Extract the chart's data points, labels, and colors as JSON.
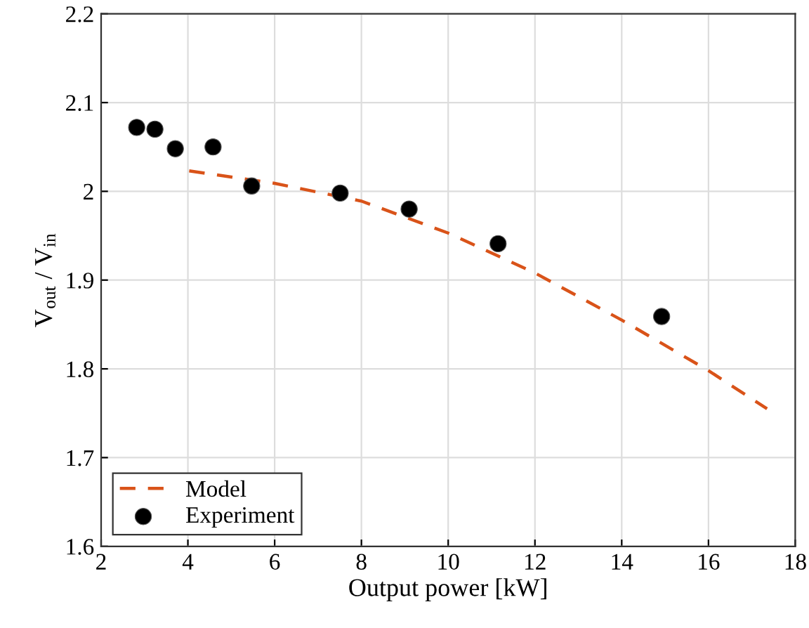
{
  "chart_data": {
    "type": "line",
    "xlabel": "Output power [kW]",
    "ylabel": "V$_{out}$ / V$_{in}$",
    "xlim": [
      2,
      18
    ],
    "ylim": [
      1.6,
      2.2
    ],
    "xticks": [
      2,
      4,
      6,
      8,
      10,
      12,
      14,
      16,
      18
    ],
    "yticks": [
      1.6,
      1.7,
      1.8,
      1.9,
      {
        "value": 2.0,
        "label": "2"
      },
      2.1,
      2.2
    ],
    "grid": true,
    "legend": "bottom left",
    "series": [
      {
        "name": "Model",
        "line_style": "dashed",
        "marker": "none",
        "color": "#d95319",
        "x": [
          4.03,
          6,
          8,
          10,
          12,
          14,
          16,
          17.35
        ],
        "values": [
          2.023,
          2.009,
          1.989,
          1.953,
          1.908,
          1.855,
          1.798,
          1.755
        ]
      },
      {
        "name": "Experiment",
        "type": "scatter",
        "marker": "circle",
        "color": "#000000",
        "x": [
          2.82,
          3.24,
          3.71,
          4.58,
          5.47,
          7.51,
          9.1,
          11.15,
          14.92
        ],
        "values": [
          2.072,
          2.07,
          2.048,
          2.05,
          2.006,
          1.998,
          1.98,
          1.941,
          1.859
        ]
      }
    ]
  }
}
